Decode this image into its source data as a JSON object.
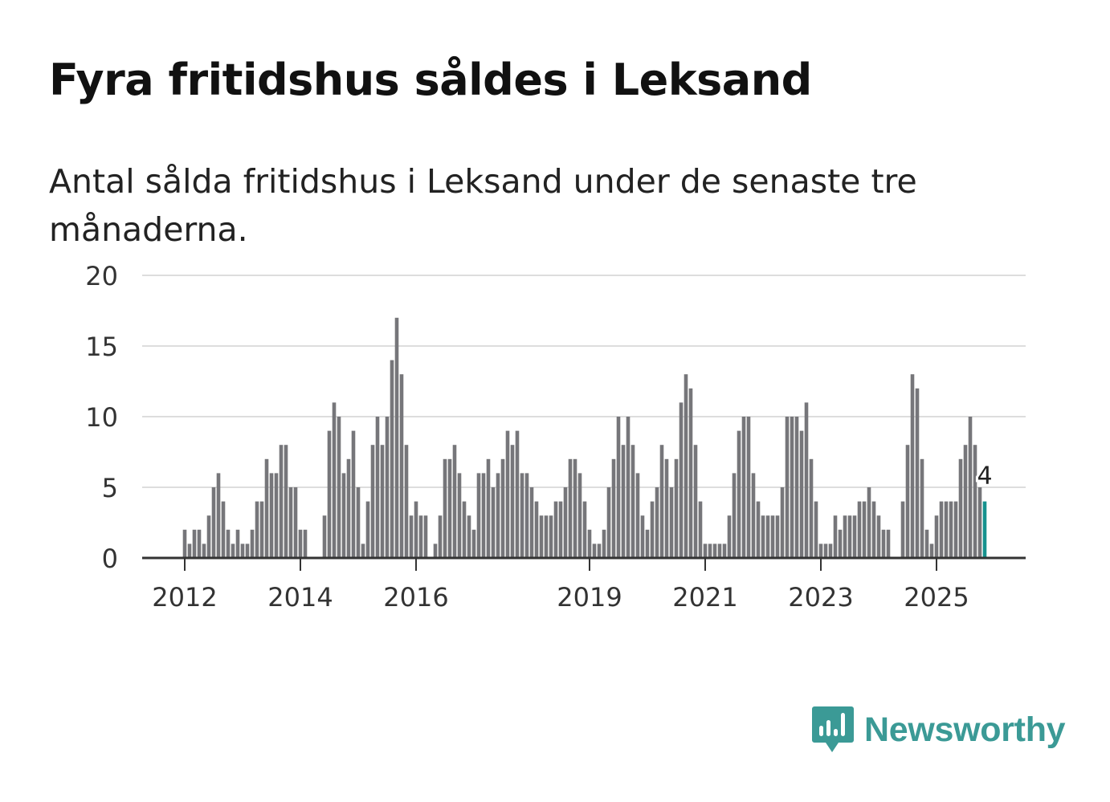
{
  "header": {
    "title": "Fyra fritidshus såldes i Leksand",
    "subtitle": "Antal sålda fritidshus i Leksand under de senaste tre månaderna."
  },
  "brand": {
    "name": "Newsworthy",
    "color": "#3b9a96"
  },
  "colors": {
    "bar": "#76767a",
    "highlight": "#16928e",
    "grid": "#dddddd",
    "axis": "#333333"
  },
  "chart_data": {
    "type": "bar",
    "title": "Fyra fritidshus såldes i Leksand",
    "subtitle": "Antal sålda fritidshus i Leksand under de senaste tre månaderna.",
    "xlabel": "",
    "ylabel": "",
    "ylim": [
      0,
      20
    ],
    "yticks": [
      "0",
      "5",
      "10",
      "15",
      "20"
    ],
    "xticks": [
      {
        "label": "2012",
        "month_index": 0
      },
      {
        "label": "2014",
        "month_index": 24
      },
      {
        "label": "2016",
        "month_index": 48
      },
      {
        "label": "2019",
        "month_index": 84
      },
      {
        "label": "2021",
        "month_index": 108
      },
      {
        "label": "2023",
        "month_index": 132
      },
      {
        "label": "2025",
        "month_index": 156
      }
    ],
    "start": "2012-01",
    "frequency": "monthly, rolling 3-month sum",
    "values": [
      2,
      1,
      2,
      2,
      1,
      3,
      5,
      6,
      4,
      2,
      1,
      2,
      1,
      1,
      2,
      4,
      4,
      7,
      6,
      6,
      8,
      8,
      5,
      5,
      2,
      2,
      0,
      0,
      0,
      3,
      9,
      11,
      10,
      6,
      7,
      9,
      5,
      1,
      4,
      8,
      10,
      8,
      10,
      14,
      17,
      13,
      8,
      3,
      4,
      3,
      3,
      0,
      1,
      3,
      7,
      7,
      8,
      6,
      4,
      3,
      2,
      6,
      6,
      7,
      5,
      6,
      7,
      9,
      8,
      9,
      6,
      6,
      5,
      4,
      3,
      3,
      3,
      4,
      4,
      5,
      7,
      7,
      6,
      4,
      2,
      1,
      1,
      2,
      5,
      7,
      10,
      8,
      10,
      8,
      6,
      3,
      2,
      4,
      5,
      8,
      7,
      5,
      7,
      11,
      13,
      12,
      8,
      4,
      1,
      1,
      1,
      1,
      1,
      3,
      6,
      9,
      10,
      10,
      6,
      4,
      3,
      3,
      3,
      3,
      5,
      10,
      10,
      10,
      9,
      11,
      7,
      4,
      1,
      1,
      1,
      3,
      2,
      3,
      3,
      3,
      4,
      4,
      5,
      4,
      3,
      2,
      2,
      0,
      0,
      4,
      8,
      13,
      12,
      7,
      2,
      1,
      3,
      4,
      4,
      4,
      4,
      7,
      8,
      10,
      8,
      5,
      4
    ],
    "highlight_last": true,
    "annotations": [
      {
        "label": "4",
        "target": "last-bar"
      }
    ]
  }
}
